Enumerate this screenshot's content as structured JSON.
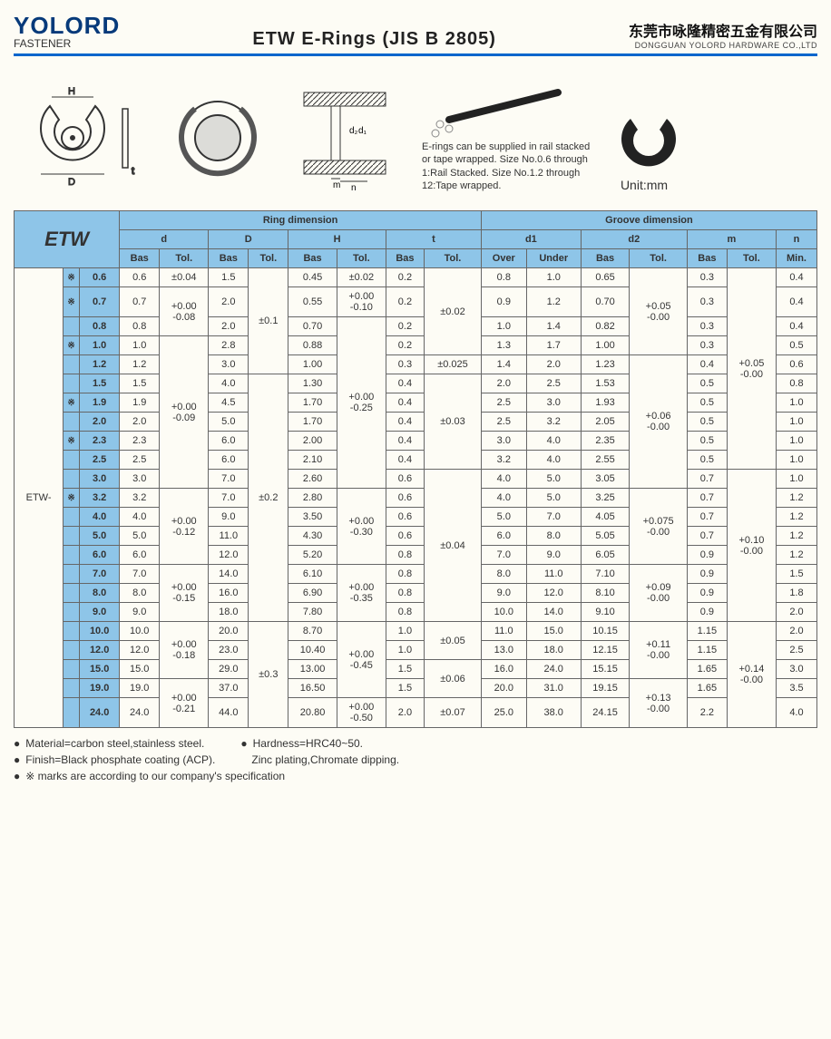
{
  "header": {
    "logo_text": "YOLORD",
    "logo_sub": "FASTENER",
    "title": "ETW  E-Rings  (JIS B 2805)",
    "company_cn": "东莞市咏隆精密五金有限公司",
    "company_en": "DONGGUAN YOLORD HARDWARE CO.,LTD"
  },
  "diagrams_note": "E-rings can be supplied in rail stacked or tape wrapped. Size No.0.6 through 1:Rail Stacked. Size No.1.2 through 12:Tape wrapped.",
  "unit_label": "Unit:mm",
  "table": {
    "label": "ETW",
    "group_ring": "Ring dimension",
    "group_groove": "Groove dimension",
    "cols": {
      "d": "d",
      "D_": "D",
      "H": "H",
      "t": "t",
      "d1": "d1",
      "d2": "d2",
      "m": "m",
      "n": "n",
      "Bas": "Bas",
      "Tol": "Tol.",
      "Over": "Over",
      "Under": "Under",
      "Min": "Min."
    },
    "prefix": "ETW-",
    "rows": [
      {
        "mark": "※",
        "size": "0.6",
        "d_bas": "0.6",
        "d_tol": "±0.04",
        "D_bas": "1.5",
        "D_tol": "±0.1",
        "H_bas": "0.45",
        "H_tol": "±0.02",
        "t_bas": "0.2",
        "t_tol": "±0.02",
        "d1_over": "0.8",
        "d1_under": "1.0",
        "d2_bas": "0.65",
        "d2_tol": "+0.05\n-0.00",
        "m_bas": "0.3",
        "m_tol": "+0.05\n-0.00",
        "n_min": "0.4"
      },
      {
        "mark": "※",
        "size": "0.7",
        "d_bas": "0.7",
        "d_tol": "+0.00\n-0.08",
        "D_bas": "2.0",
        "D_tol": "",
        "H_bas": "0.55",
        "H_tol": "+0.00\n-0.10",
        "t_bas": "0.2",
        "t_tol": "",
        "d1_over": "0.9",
        "d1_under": "1.2",
        "d2_bas": "0.70",
        "d2_tol": "",
        "m_bas": "0.3",
        "m_tol": "",
        "n_min": "0.4"
      },
      {
        "mark": "",
        "size": "0.8",
        "d_bas": "0.8",
        "d_tol": "",
        "D_bas": "2.0",
        "D_tol": "",
        "H_bas": "0.70",
        "H_tol": "+0.00\n-0.25",
        "t_bas": "0.2",
        "t_tol": "",
        "d1_over": "1.0",
        "d1_under": "1.4",
        "d2_bas": "0.82",
        "d2_tol": "",
        "m_bas": "0.3",
        "m_tol": "",
        "n_min": "0.4"
      },
      {
        "mark": "※",
        "size": "1.0",
        "d_bas": "1.0",
        "d_tol": "+0.00\n-0.09",
        "D_bas": "2.8",
        "D_tol": "",
        "H_bas": "0.88",
        "H_tol": "",
        "t_bas": "0.2",
        "t_tol": "",
        "d1_over": "1.3",
        "d1_under": "1.7",
        "d2_bas": "1.00",
        "d2_tol": "",
        "m_bas": "0.3",
        "m_tol": "",
        "n_min": "0.5"
      },
      {
        "mark": "",
        "size": "1.2",
        "d_bas": "1.2",
        "d_tol": "",
        "D_bas": "3.0",
        "D_tol": "",
        "H_bas": "1.00",
        "H_tol": "",
        "t_bas": "0.3",
        "t_tol": "±0.025",
        "d1_over": "1.4",
        "d1_under": "2.0",
        "d2_bas": "1.23",
        "d2_tol": "+0.06\n-0.00",
        "m_bas": "0.4",
        "m_tol": "",
        "n_min": "0.6"
      },
      {
        "mark": "",
        "size": "1.5",
        "d_bas": "1.5",
        "d_tol": "",
        "D_bas": "4.0",
        "D_tol": "±0.2",
        "H_bas": "1.30",
        "H_tol": "",
        "t_bas": "0.4",
        "t_tol": "±0.03",
        "d1_over": "2.0",
        "d1_under": "2.5",
        "d2_bas": "1.53",
        "d2_tol": "",
        "m_bas": "0.5",
        "m_tol": "",
        "n_min": "0.8"
      },
      {
        "mark": "※",
        "size": "1.9",
        "d_bas": "1.9",
        "d_tol": "",
        "D_bas": "4.5",
        "D_tol": "",
        "H_bas": "1.70",
        "H_tol": "",
        "t_bas": "0.4",
        "t_tol": "",
        "d1_over": "2.5",
        "d1_under": "3.0",
        "d2_bas": "1.93",
        "d2_tol": "",
        "m_bas": "0.5",
        "m_tol": "",
        "n_min": "1.0"
      },
      {
        "mark": "",
        "size": "2.0",
        "d_bas": "2.0",
        "d_tol": "",
        "D_bas": "5.0",
        "D_tol": "",
        "H_bas": "1.70",
        "H_tol": "",
        "t_bas": "0.4",
        "t_tol": "",
        "d1_over": "2.5",
        "d1_under": "3.2",
        "d2_bas": "2.05",
        "d2_tol": "",
        "m_bas": "0.5",
        "m_tol": "",
        "n_min": "1.0"
      },
      {
        "mark": "※",
        "size": "2.3",
        "d_bas": "2.3",
        "d_tol": "",
        "D_bas": "6.0",
        "D_tol": "",
        "H_bas": "2.00",
        "H_tol": "",
        "t_bas": "0.4",
        "t_tol": "",
        "d1_over": "3.0",
        "d1_under": "4.0",
        "d2_bas": "2.35",
        "d2_tol": "",
        "m_bas": "0.5",
        "m_tol": "",
        "n_min": "1.0"
      },
      {
        "mark": "",
        "size": "2.5",
        "d_bas": "2.5",
        "d_tol": "",
        "D_bas": "6.0",
        "D_tol": "",
        "H_bas": "2.10",
        "H_tol": "",
        "t_bas": "0.4",
        "t_tol": "",
        "d1_over": "3.2",
        "d1_under": "4.0",
        "d2_bas": "2.55",
        "d2_tol": "",
        "m_bas": "0.5",
        "m_tol": "",
        "n_min": "1.0"
      },
      {
        "mark": "",
        "size": "3.0",
        "d_bas": "3.0",
        "d_tol": "",
        "D_bas": "7.0",
        "D_tol": "",
        "H_bas": "2.60",
        "H_tol": "",
        "t_bas": "0.6",
        "t_tol": "±0.04",
        "d1_over": "4.0",
        "d1_under": "5.0",
        "d2_bas": "3.05",
        "d2_tol": "",
        "m_bas": "0.7",
        "m_tol": "+0.10\n-0.00",
        "n_min": "1.0"
      },
      {
        "mark": "※",
        "size": "3.2",
        "d_bas": "3.2",
        "d_tol": "+0.00\n-0.12",
        "D_bas": "7.0",
        "D_tol": "",
        "H_bas": "2.80",
        "H_tol": "+0.00\n-0.30",
        "t_bas": "0.6",
        "t_tol": "",
        "d1_over": "4.0",
        "d1_under": "5.0",
        "d2_bas": "3.25",
        "d2_tol": "+0.075\n-0.00",
        "m_bas": "0.7",
        "m_tol": "",
        "n_min": "1.2"
      },
      {
        "mark": "",
        "size": "4.0",
        "d_bas": "4.0",
        "d_tol": "",
        "D_bas": "9.0",
        "D_tol": "",
        "H_bas": "3.50",
        "H_tol": "",
        "t_bas": "0.6",
        "t_tol": "",
        "d1_over": "5.0",
        "d1_under": "7.0",
        "d2_bas": "4.05",
        "d2_tol": "",
        "m_bas": "0.7",
        "m_tol": "",
        "n_min": "1.2"
      },
      {
        "mark": "",
        "size": "5.0",
        "d_bas": "5.0",
        "d_tol": "",
        "D_bas": "11.0",
        "D_tol": "",
        "H_bas": "4.30",
        "H_tol": "",
        "t_bas": "0.6",
        "t_tol": "",
        "d1_over": "6.0",
        "d1_under": "8.0",
        "d2_bas": "5.05",
        "d2_tol": "",
        "m_bas": "0.7",
        "m_tol": "",
        "n_min": "1.2"
      },
      {
        "mark": "",
        "size": "6.0",
        "d_bas": "6.0",
        "d_tol": "",
        "D_bas": "12.0",
        "D_tol": "",
        "H_bas": "5.20",
        "H_tol": "",
        "t_bas": "0.8",
        "t_tol": "",
        "d1_over": "7.0",
        "d1_under": "9.0",
        "d2_bas": "6.05",
        "d2_tol": "",
        "m_bas": "0.9",
        "m_tol": "",
        "n_min": "1.2"
      },
      {
        "mark": "",
        "size": "7.0",
        "d_bas": "7.0",
        "d_tol": "+0.00\n-0.15",
        "D_bas": "14.0",
        "D_tol": "",
        "H_bas": "6.10",
        "H_tol": "+0.00\n-0.35",
        "t_bas": "0.8",
        "t_tol": "",
        "d1_over": "8.0",
        "d1_under": "11.0",
        "d2_bas": "7.10",
        "d2_tol": "+0.09\n-0.00",
        "m_bas": "0.9",
        "m_tol": "",
        "n_min": "1.5"
      },
      {
        "mark": "",
        "size": "8.0",
        "d_bas": "8.0",
        "d_tol": "",
        "D_bas": "16.0",
        "D_tol": "",
        "H_bas": "6.90",
        "H_tol": "",
        "t_bas": "0.8",
        "t_tol": "",
        "d1_over": "9.0",
        "d1_under": "12.0",
        "d2_bas": "8.10",
        "d2_tol": "",
        "m_bas": "0.9",
        "m_tol": "",
        "n_min": "1.8"
      },
      {
        "mark": "",
        "size": "9.0",
        "d_bas": "9.0",
        "d_tol": "",
        "D_bas": "18.0",
        "D_tol": "",
        "H_bas": "7.80",
        "H_tol": "",
        "t_bas": "0.8",
        "t_tol": "",
        "d1_over": "10.0",
        "d1_under": "14.0",
        "d2_bas": "9.10",
        "d2_tol": "",
        "m_bas": "0.9",
        "m_tol": "",
        "n_min": "2.0"
      },
      {
        "mark": "",
        "size": "10.0",
        "d_bas": "10.0",
        "d_tol": "+0.00\n-0.18",
        "D_bas": "20.0",
        "D_tol": "±0.3",
        "H_bas": "8.70",
        "H_tol": "+0.00\n-0.45",
        "t_bas": "1.0",
        "t_tol": "±0.05",
        "d1_over": "11.0",
        "d1_under": "15.0",
        "d2_bas": "10.15",
        "d2_tol": "+0.11\n-0.00",
        "m_bas": "1.15",
        "m_tol": "+0.14\n-0.00",
        "n_min": "2.0"
      },
      {
        "mark": "",
        "size": "12.0",
        "d_bas": "12.0",
        "d_tol": "",
        "D_bas": "23.0",
        "D_tol": "",
        "H_bas": "10.40",
        "H_tol": "",
        "t_bas": "1.0",
        "t_tol": "",
        "d1_over": "13.0",
        "d1_under": "18.0",
        "d2_bas": "12.15",
        "d2_tol": "",
        "m_bas": "1.15",
        "m_tol": "",
        "n_min": "2.5"
      },
      {
        "mark": "",
        "size": "15.0",
        "d_bas": "15.0",
        "d_tol": "",
        "D_bas": "29.0",
        "D_tol": "",
        "H_bas": "13.00",
        "H_tol": "",
        "t_bas": "1.5",
        "t_tol": "±0.06",
        "d1_over": "16.0",
        "d1_under": "24.0",
        "d2_bas": "15.15",
        "d2_tol": "",
        "m_bas": "1.65",
        "m_tol": "",
        "n_min": "3.0"
      },
      {
        "mark": "",
        "size": "19.0",
        "d_bas": "19.0",
        "d_tol": "+0.00\n-0.21",
        "D_bas": "37.0",
        "D_tol": "",
        "H_bas": "16.50",
        "H_tol": "",
        "t_bas": "1.5",
        "t_tol": "",
        "d1_over": "20.0",
        "d1_under": "31.0",
        "d2_bas": "19.15",
        "d2_tol": "+0.13\n-0.00",
        "m_bas": "1.65",
        "m_tol": "",
        "n_min": "3.5"
      },
      {
        "mark": "",
        "size": "24.0",
        "d_bas": "24.0",
        "d_tol": "",
        "D_bas": "44.0",
        "D_tol": "",
        "H_bas": "20.80",
        "H_tol": "+0.00\n-0.50",
        "t_bas": "2.0",
        "t_tol": "±0.07",
        "d1_over": "25.0",
        "d1_under": "38.0",
        "d2_bas": "24.15",
        "d2_tol": "",
        "m_bas": "2.2",
        "m_tol": "",
        "n_min": "4.0"
      }
    ]
  },
  "footer": {
    "material": "Material=carbon steel,stainless steel.",
    "hardness": "Hardness=HRC40~50.",
    "finish": "Finish=Black phosphate coating (ACP).",
    "plating": "Zinc plating,Chromate dipping.",
    "note": "※ marks are according to our company's specification"
  },
  "colors": {
    "header_blue": "#0066cc",
    "logo_navy": "#073a7a",
    "table_head": "#8ec5e8",
    "border": "#666666",
    "bg": "#fdfcf5"
  }
}
